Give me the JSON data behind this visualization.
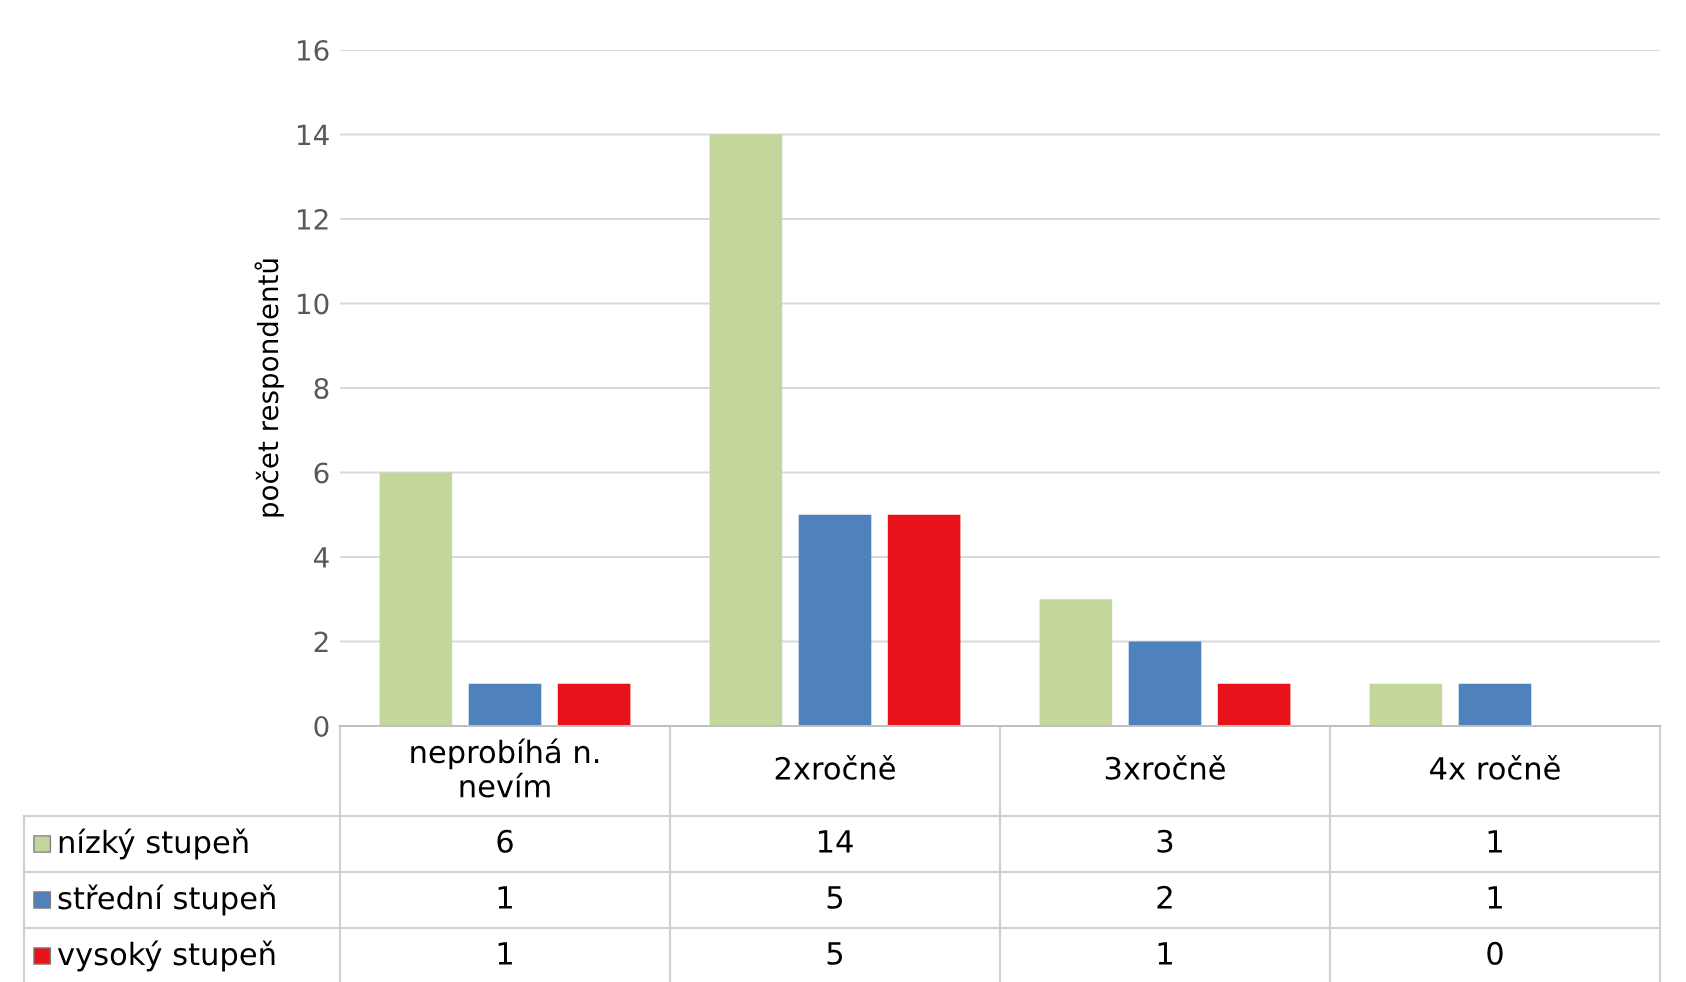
{
  "chart_data": {
    "type": "bar",
    "ylabel": "počet respondentů",
    "categories": [
      "neprobíhá n.\nnevím",
      "2xročně",
      "3xročně",
      "4x ročně"
    ],
    "series": [
      {
        "name": "nízký stupeň",
        "color": "#c3d69b",
        "values": [
          6,
          14,
          3,
          1
        ]
      },
      {
        "name": "střední stupeň",
        "color": "#4f81bd",
        "values": [
          1,
          5,
          2,
          1
        ]
      },
      {
        "name": "vysoký stupeň",
        "color": "#e8121a",
        "values": [
          1,
          5,
          1,
          0
        ]
      }
    ],
    "ylim": [
      0,
      16
    ],
    "yticks": [
      0,
      2,
      4,
      6,
      8,
      10,
      12,
      14,
      16
    ],
    "grid": "y",
    "legend": "bottom",
    "data_labels": true
  }
}
